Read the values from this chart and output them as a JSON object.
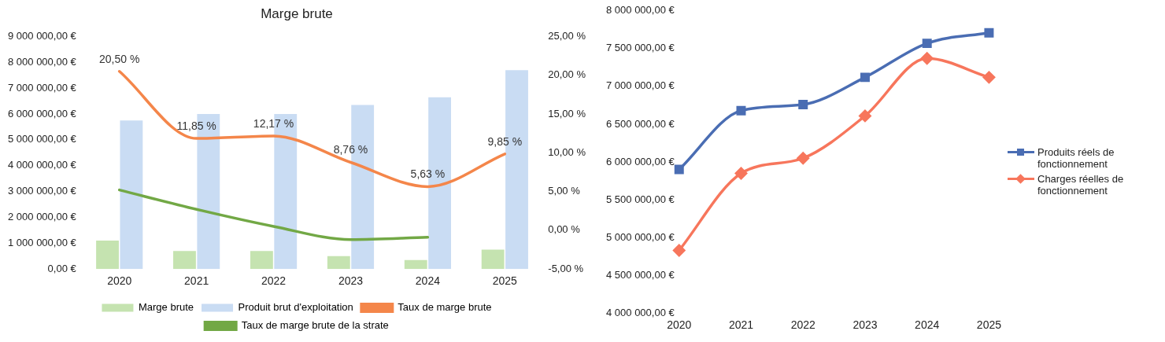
{
  "chart_data": [
    {
      "type": "bar",
      "title": "Marge brute",
      "categories": [
        "2020",
        "2021",
        "2022",
        "2023",
        "2024",
        "2025"
      ],
      "series": [
        {
          "name": "Marge brute",
          "color": "#c5e3b0",
          "values": [
            1100000,
            700000,
            700000,
            500000,
            350000,
            750000
          ]
        },
        {
          "name": "Produit brut d'exploitation",
          "color": "#c9dcf3",
          "values": [
            5750000,
            6000000,
            6000000,
            6350000,
            6650000,
            7700000
          ]
        },
        {
          "name": "Taux de marge brute",
          "type": "line",
          "axis": "y2",
          "color": "#f4864a",
          "marker": "none",
          "values": [
            20.5,
            11.85,
            12.17,
            8.76,
            5.63,
            9.85
          ],
          "value_labels": [
            "20,50 %",
            "11,85 %",
            "12,17 %",
            "8,76 %",
            "5,63 %",
            "9,85 %"
          ]
        },
        {
          "name": "Taux de marge brute de la strate",
          "type": "line",
          "axis": "y2",
          "color": "#72a845",
          "marker": "none",
          "values": [
            5.2,
            2.7,
            0.5,
            -1.2,
            -0.9,
            null
          ]
        }
      ],
      "ylim": [
        0,
        9000000
      ],
      "yticks": [
        {
          "value": 0,
          "label": "0,00 €"
        },
        {
          "value": 1000000,
          "label": "1 000 000,00 €"
        },
        {
          "value": 2000000,
          "label": "2 000 000,00 €"
        },
        {
          "value": 3000000,
          "label": "3 000 000,00 €"
        },
        {
          "value": 4000000,
          "label": "4 000 000,00 €"
        },
        {
          "value": 5000000,
          "label": "5 000 000,00 €"
        },
        {
          "value": 6000000,
          "label": "6 000 000,00 €"
        },
        {
          "value": 7000000,
          "label": "7 000 000,00 €"
        },
        {
          "value": 8000000,
          "label": "8 000 000,00 €"
        },
        {
          "value": 9000000,
          "label": "9 000 000,00 €"
        }
      ],
      "y2lim": [
        -5,
        25
      ],
      "y2ticks": [
        {
          "value": -5,
          "label": "-5,00 %"
        },
        {
          "value": 0,
          "label": "0,00 %"
        },
        {
          "value": 5,
          "label": "5,00 %"
        },
        {
          "value": 10,
          "label": "10,00 %"
        },
        {
          "value": 15,
          "label": "15,00 %"
        },
        {
          "value": 20,
          "label": "20,00 %"
        },
        {
          "value": 25,
          "label": "25,00 %"
        }
      ],
      "grid": false,
      "legend": "bottom"
    },
    {
      "type": "line",
      "categories": [
        "2020",
        "2021",
        "2022",
        "2023",
        "2024",
        "2025"
      ],
      "series": [
        {
          "name": "Produits réels de fonctionnement",
          "color": "#4a6db3",
          "marker": "square",
          "values": [
            5900000,
            6680000,
            6760000,
            7120000,
            7570000,
            7710000
          ]
        },
        {
          "name": "Charges réelles de fonctionnement",
          "color": "#f7765c",
          "marker": "diamond",
          "values": [
            4830000,
            5850000,
            6050000,
            6610000,
            7370000,
            7120000
          ]
        }
      ],
      "ylim": [
        4000000,
        8000000
      ],
      "yticks": [
        {
          "value": 4000000,
          "label": "4 000 000,00 €"
        },
        {
          "value": 4500000,
          "label": "4 500 000,00 €"
        },
        {
          "value": 5000000,
          "label": "5 000 000,00 €"
        },
        {
          "value": 5500000,
          "label": "5 500 000,00 €"
        },
        {
          "value": 6000000,
          "label": "6 000 000,00 €"
        },
        {
          "value": 6500000,
          "label": "6 500 000,00 €"
        },
        {
          "value": 7000000,
          "label": "7 000 000,00 €"
        },
        {
          "value": 7500000,
          "label": "7 500 000,00 €"
        },
        {
          "value": 8000000,
          "label": "8 000 000,00 €"
        }
      ],
      "grid": false,
      "legend": "right"
    }
  ]
}
